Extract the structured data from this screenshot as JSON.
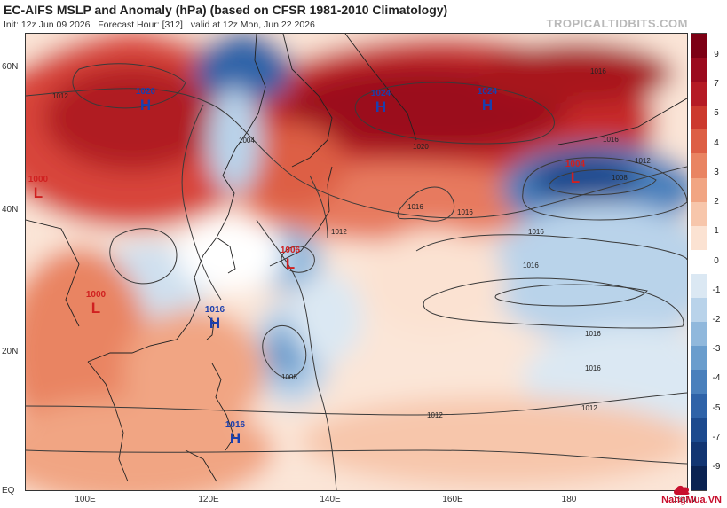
{
  "header": {
    "title": "EC-AIFS MSLP and Anomaly (hPa) (based on CFSR 1981-2010 Climatology)",
    "init": "Init: 12z Jun 09 2026",
    "forecast_hour": "Forecast Hour: [312]",
    "valid": "valid at 12z Mon, Jun 22 2026",
    "credit": "TROPICALTIDBITS.COM"
  },
  "axes": {
    "lat_labels": [
      "60N",
      "40N",
      "20N",
      "EQ"
    ],
    "lon_labels": [
      "100E",
      "120E",
      "140E",
      "160E",
      "180",
      "160W"
    ]
  },
  "colorbar": {
    "labels": [
      "9",
      "7",
      "5",
      "4",
      "3",
      "2",
      "1",
      "0",
      "-1",
      "-2",
      "-3",
      "-4",
      "-5",
      "-7",
      "-9"
    ],
    "colors": [
      "#7d0015",
      "#9b0a1e",
      "#b51b25",
      "#cc3a2e",
      "#dd5f45",
      "#e98462",
      "#f1a583",
      "#f7c6ab",
      "#fbe2d2",
      "#ffffff",
      "#dbe8f3",
      "#b9d3ea",
      "#90b8dc",
      "#6a9dcd",
      "#4a80bc",
      "#2f63a8",
      "#1c4a8e",
      "#123572",
      "#0a2252"
    ]
  },
  "pressure_systems": [
    {
      "type": "H",
      "value": "1020",
      "color": "#1a3fae"
    },
    {
      "type": "H",
      "value": "1024",
      "color": "#1a3fae"
    },
    {
      "type": "H",
      "value": "1024",
      "color": "#1a3fae"
    },
    {
      "type": "L",
      "value": "1004",
      "color": "#d02020"
    },
    {
      "type": "L",
      "value": "1000",
      "color": "#d02020"
    },
    {
      "type": "L",
      "value": "1006",
      "color": "#d02020"
    },
    {
      "type": "L",
      "value": "1000",
      "color": "#d02020"
    },
    {
      "type": "H",
      "value": "1016",
      "color": "#1a3fae"
    },
    {
      "type": "H",
      "value": "1016",
      "color": "#1a3fae"
    }
  ],
  "isobar_labels": [
    "1012",
    "1016",
    "1020",
    "1016",
    "1016",
    "1012",
    "1008",
    "1004",
    "1016",
    "1016",
    "1016",
    "1016",
    "1012",
    "1012",
    "1008",
    "1012",
    "1016"
  ],
  "watermark": "NangMua.VN"
}
